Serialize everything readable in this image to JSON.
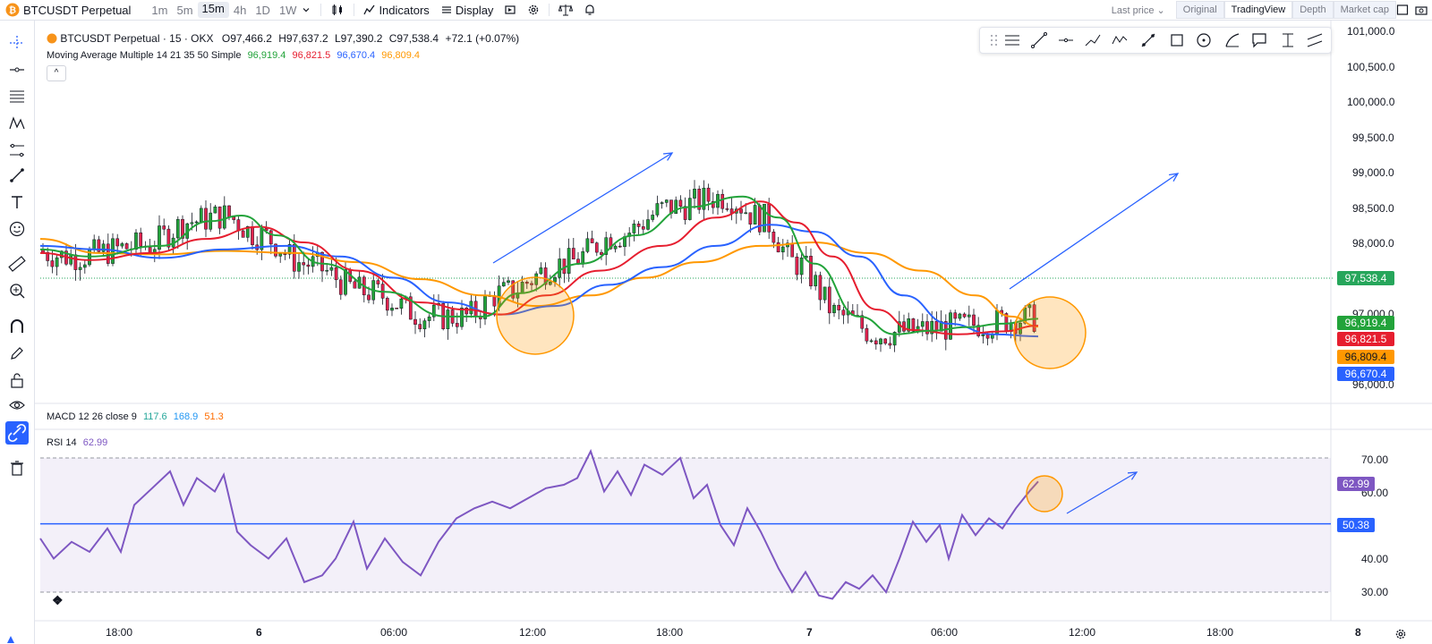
{
  "toolbar": {
    "symbol": "BTCUSDT Perpetual",
    "timeframes": [
      "1m",
      "5m",
      "15m",
      "4h",
      "1D",
      "1W"
    ],
    "active_timeframe": "15m",
    "indicators_label": "Indicators",
    "display_label": "Display",
    "last_price_label": "Last price",
    "view_tabs": [
      "Original",
      "TradingView",
      "Depth",
      "Market cap"
    ],
    "active_view_tab": "TradingView"
  },
  "legend": {
    "title": "BTCUSDT Perpetual · 15 · OKX",
    "open": "O97,466.2",
    "high": "H97,637.2",
    "low": "L97,390.2",
    "close": "C97,538.4",
    "change": "+72.1 (+0.07%)",
    "ma_label": "Moving Average Multiple 14 21 35 50 Simple",
    "ma_values": [
      "96,919.4",
      "96,821.5",
      "96,670.4",
      "96,809.4"
    ],
    "ma_colors": [
      "#22a33a",
      "#e61e2f",
      "#2962ff",
      "#ff9800"
    ],
    "macd_label": "MACD 12 26 close 9",
    "macd_values": [
      "117.6",
      "168.9",
      "51.3"
    ],
    "macd_colors": [
      "#26a69a",
      "#2196f3",
      "#ff6d00"
    ],
    "rsi_label": "RSI 14",
    "rsi_value": "62.99",
    "collapse_symbol": "^"
  },
  "price_axis": {
    "ticks": [
      "101,000.0",
      "100,500.0",
      "100,000.0",
      "99,500.0",
      "99,000.0",
      "98,500.0",
      "98,000.0",
      "97,000.0",
      "96,000.0"
    ],
    "tags": [
      {
        "text": "97,538.4",
        "color": "#26a65b"
      },
      {
        "text": "96,919.4",
        "color": "#22a33a"
      },
      {
        "text": "96,821.5",
        "color": "#e61e2f"
      },
      {
        "text": "96,809.4",
        "color": "#ff9800"
      },
      {
        "text": "96,670.4",
        "color": "#2962ff"
      }
    ]
  },
  "rsi_axis": {
    "ticks": [
      "70.00",
      "60.00",
      "40.00",
      "30.00"
    ],
    "tags": [
      {
        "text": "62.99",
        "color": "#7e57c2"
      },
      {
        "text": "50.38",
        "color": "#2962ff"
      }
    ]
  },
  "time_axis": {
    "labels": [
      "18:00",
      "6",
      "06:00",
      "12:00",
      "18:00",
      "7",
      "06:00",
      "12:00",
      "18:00",
      "8"
    ]
  },
  "chart_data": {
    "type": "line",
    "title": "BTCUSDT Perpetual · 15 · OKX",
    "current_price": 97538.4,
    "ylim": [
      95900,
      101100
    ],
    "series": [
      {
        "name": "MA 14",
        "color": "#22a33a",
        "last": 96919.4
      },
      {
        "name": "MA 21",
        "color": "#e61e2f",
        "last": 96821.5
      },
      {
        "name": "MA 35",
        "color": "#2962ff",
        "last": 96670.4
      },
      {
        "name": "MA 50",
        "color": "#ff9800",
        "last": 96809.4
      }
    ],
    "rsi": {
      "period": 14,
      "last": 62.99,
      "levels": [
        70,
        50.38,
        30
      ],
      "ylim": [
        25,
        75
      ]
    },
    "x_labels": [
      "18:00",
      "6",
      "06:00",
      "12:00",
      "18:00",
      "7",
      "06:00",
      "12:00",
      "18:00",
      "8"
    ]
  }
}
